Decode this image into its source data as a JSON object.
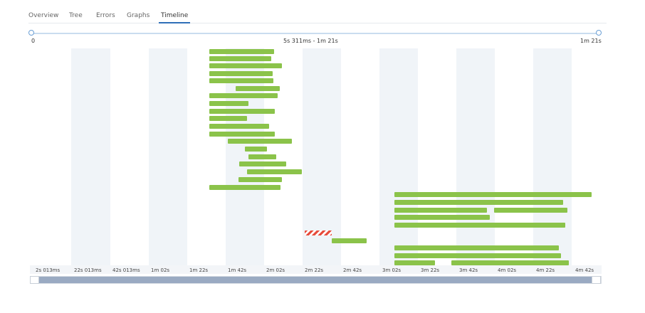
{
  "tabs": [
    {
      "label": "Overview",
      "active": false
    },
    {
      "label": "Tree",
      "active": false
    },
    {
      "label": "Errors",
      "active": false
    },
    {
      "label": "Graphs",
      "active": false
    },
    {
      "label": "Timeline",
      "active": true
    }
  ],
  "range": {
    "start_label": "0",
    "window_label": "5s 311ms - 1m 21s",
    "end_label": "1m 21s"
  },
  "axis": {
    "ticks": [
      "2s 013ms",
      "22s 013ms",
      "42s 013ms",
      "1m 02s",
      "1m 22s",
      "1m 42s",
      "2m 02s",
      "2m 22s",
      "2m 42s",
      "3m 02s",
      "3m 22s",
      "3m 42s",
      "4m 02s",
      "4m 22s",
      "4m 42s"
    ]
  },
  "colors": {
    "success": "#8bc34a",
    "error": "#e74c3c",
    "accent": "#2f6fb8"
  },
  "scrollbar": {
    "position": 0,
    "visible_fraction": 0.97
  }
}
